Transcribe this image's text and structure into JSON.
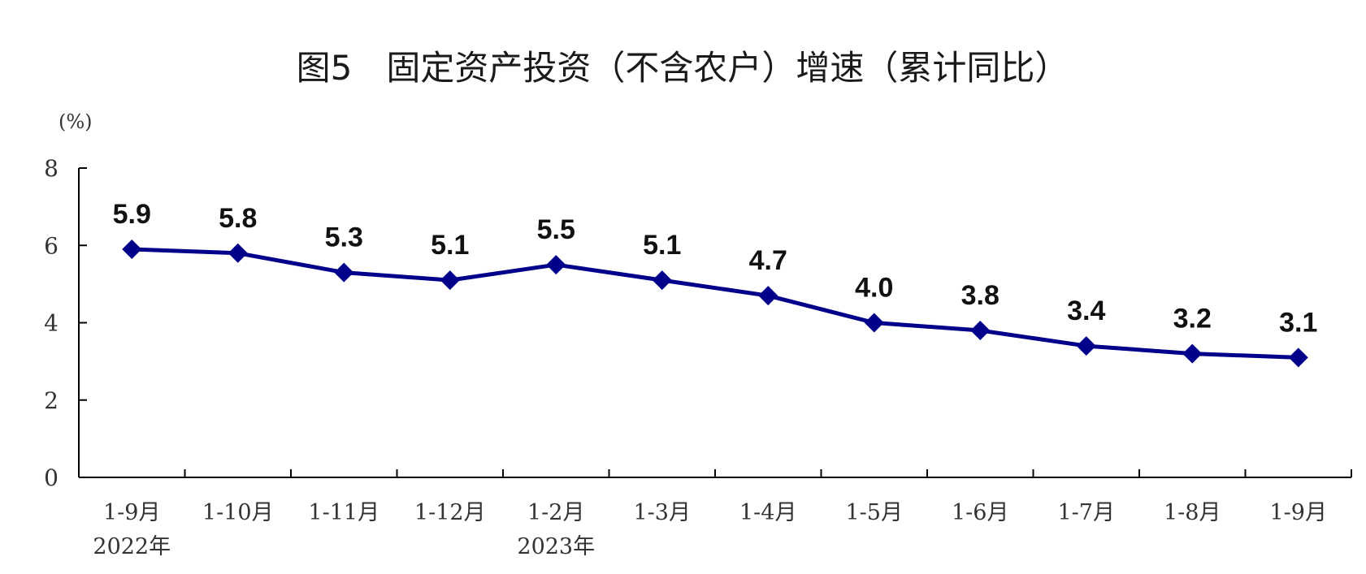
{
  "chart_data": {
    "type": "line",
    "title": "图5　固定资产投资（不含农户）增速（累计同比）",
    "ylabel": "(%)",
    "ylim": [
      0,
      8
    ],
    "yticks": [
      0,
      2,
      4,
      6,
      8
    ],
    "grid": false,
    "categories": [
      "1-9月",
      "1-10月",
      "1-11月",
      "1-12月",
      "1-2月",
      "1-3月",
      "1-4月",
      "1-5月",
      "1-6月",
      "1-7月",
      "1-8月",
      "1-9月"
    ],
    "year_labels": [
      {
        "index": 0,
        "text": "2022年"
      },
      {
        "index": 4,
        "text": "2023年"
      }
    ],
    "series": [
      {
        "values": [
          5.9,
          5.8,
          5.3,
          5.1,
          5.5,
          5.1,
          4.7,
          4.0,
          3.8,
          3.4,
          3.2,
          3.1
        ],
        "labels": [
          "5.9",
          "5.8",
          "5.3",
          "5.1",
          "5.5",
          "5.1",
          "4.7",
          "4.0",
          "3.8",
          "3.4",
          "3.2",
          "3.1"
        ],
        "color": "#00008b"
      }
    ]
  }
}
